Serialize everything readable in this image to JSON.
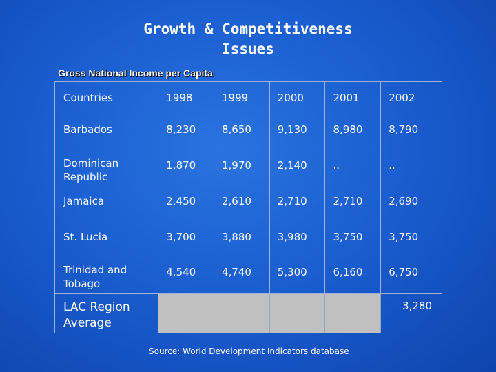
{
  "slide": {
    "title_line1": "Growth & Competitiveness",
    "title_line2": "Issues",
    "subtitle": "Gross National Income per Capita",
    "source": "Source: World Development Indicators database"
  },
  "table": {
    "headers": [
      "Countries",
      "1998",
      "1999",
      "2000",
      "2001",
      "2002"
    ],
    "rows": [
      {
        "country": "Barbados",
        "values": [
          "8,230",
          "8,650",
          "9,130",
          "8,980",
          "8,790"
        ]
      },
      {
        "country": "Dominican Republic",
        "values": [
          "1,870",
          "1,970",
          "2,140",
          "..",
          ".."
        ]
      },
      {
        "country": "Jamaica",
        "values": [
          "2,450",
          "2,610",
          "2,710",
          "2,710",
          "2,690"
        ]
      },
      {
        "country": "St. Lucia",
        "values": [
          "3,700",
          "3,880",
          "3,980",
          "3,750",
          "3,750"
        ]
      },
      {
        "country": "Trinidad and Tobago",
        "values": [
          "4,540",
          "4,740",
          "5,300",
          "6,160",
          "6,750"
        ]
      }
    ],
    "lac": {
      "label": "LAC Region Average",
      "value_2002": "3,280"
    }
  }
}
